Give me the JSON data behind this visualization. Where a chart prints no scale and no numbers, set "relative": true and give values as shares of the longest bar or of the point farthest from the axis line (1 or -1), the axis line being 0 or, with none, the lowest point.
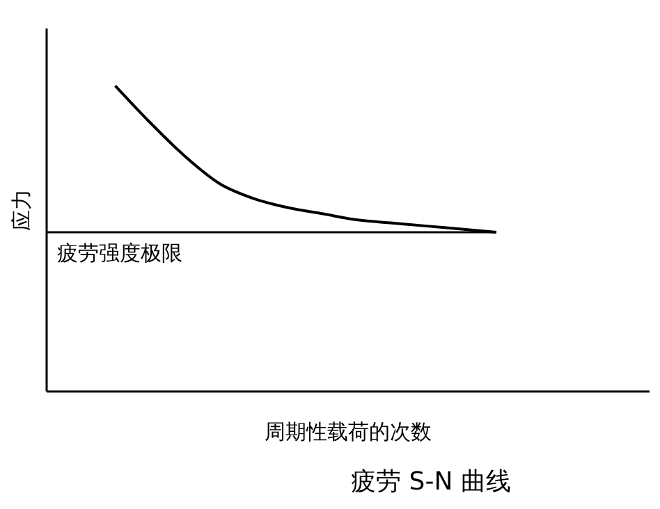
{
  "chart_data": {
    "type": "line",
    "title": "疲劳 S-N 曲线",
    "xlabel": "周期性载荷的次数",
    "ylabel": "应力",
    "relative": true,
    "tick_labels": false,
    "marker": "none",
    "color": "#000000",
    "categories": [
      null,
      null,
      null,
      null,
      null,
      null,
      null,
      null,
      null,
      null,
      null,
      null
    ],
    "values": [
      1,
      0.88,
      0.77,
      0.68,
      0.63,
      0.6,
      0.58,
      0.56,
      0.55,
      0.54,
      0.53,
      0.52
    ],
    "ref_lines": [
      {
        "axis": "y",
        "value": 0.52,
        "label": "疲劳强度极限",
        "color": "#000000"
      }
    ]
  }
}
